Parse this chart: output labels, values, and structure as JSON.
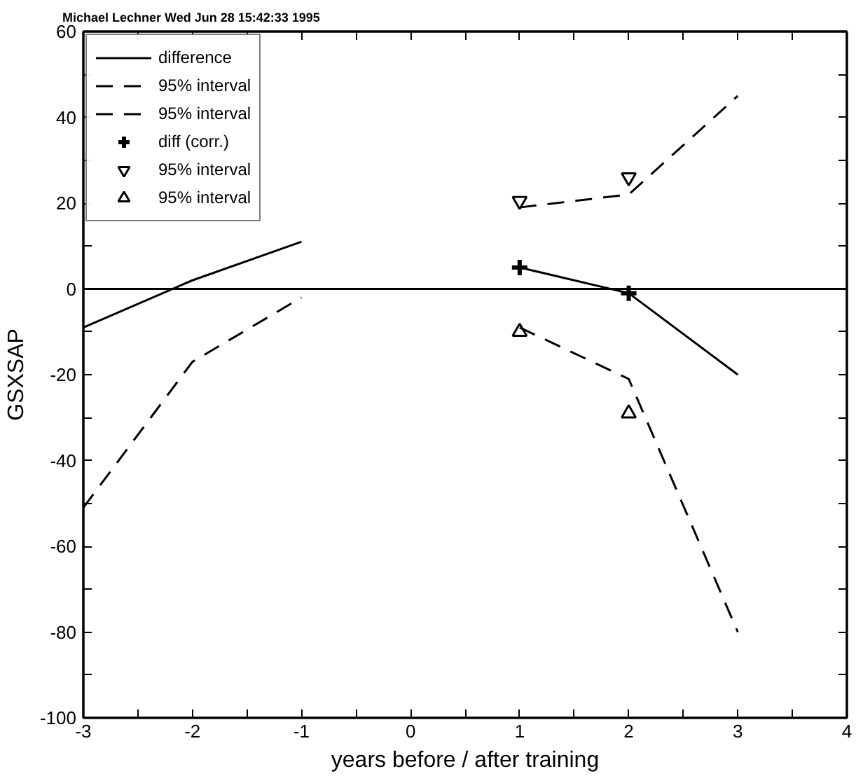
{
  "chart_data": {
    "type": "line",
    "xlabel": "years before / after training",
    "ylabel": "GSXSAP",
    "annotations": [
      "Michael Lechner Wed Jun 28 15:42:33 1995"
    ],
    "xlim": [
      -3,
      4
    ],
    "ylim": [
      -100,
      60
    ],
    "xticks": [
      -3,
      {
        "value": -2.5,
        "label": null
      },
      -2,
      {
        "value": -1.5,
        "label": null
      },
      -1,
      {
        "value": -0.5,
        "label": null
      },
      0,
      {
        "value": 0.5,
        "label": null
      },
      1,
      {
        "value": 1.5,
        "label": null
      },
      2,
      {
        "value": 2.5,
        "label": null
      },
      3,
      {
        "value": 3.5,
        "label": null
      },
      4
    ],
    "yticks": [
      -100,
      {
        "value": -90,
        "label": null
      },
      -80,
      {
        "value": -70,
        "label": null
      },
      -60,
      {
        "value": -50,
        "label": null
      },
      -40,
      {
        "value": -30,
        "label": null
      },
      -20,
      {
        "value": -10,
        "label": null
      },
      0,
      {
        "value": 10,
        "label": null
      },
      20,
      {
        "value": 30,
        "label": null
      },
      40,
      {
        "value": 50,
        "label": null
      },
      60
    ],
    "grid": false,
    "legend": "top left",
    "ref_lines": [
      {
        "axis": "y",
        "value": 0,
        "color": "#000000",
        "line_style": "solid"
      }
    ],
    "series": [
      {
        "name": "difference",
        "color": "#000000",
        "line_style": "solid",
        "x": [
          -3,
          -2,
          -1,
          0,
          1,
          2,
          3
        ],
        "values": [
          -9,
          2,
          11,
          null,
          5,
          -1,
          -20
        ]
      },
      {
        "name": "95% interval",
        "color": "#000000",
        "line_style": "dashed",
        "x": [
          1,
          2,
          3
        ],
        "values": [
          19,
          22,
          45
        ]
      },
      {
        "name": "95% interval",
        "color": "#000000",
        "line_style": "dashed",
        "x": [
          -3,
          -2,
          -1,
          0,
          1,
          2,
          3
        ],
        "values": [
          -51,
          -17,
          -2,
          null,
          -9,
          -21,
          -80
        ]
      },
      {
        "name": "diff (corr.)",
        "type": "scatter",
        "color": "#000000",
        "marker": "cross",
        "x": [
          1,
          2
        ],
        "values": [
          5,
          -1
        ]
      },
      {
        "name": "95% interval",
        "type": "scatter",
        "color": "#000000",
        "marker": "triangle_down",
        "x": [
          1,
          2
        ],
        "values": [
          20.5,
          26
        ]
      },
      {
        "name": "95% interval",
        "type": "scatter",
        "color": "#000000",
        "marker": "triangle",
        "x": [
          1,
          2
        ],
        "values": [
          -10,
          -29
        ]
      }
    ]
  }
}
